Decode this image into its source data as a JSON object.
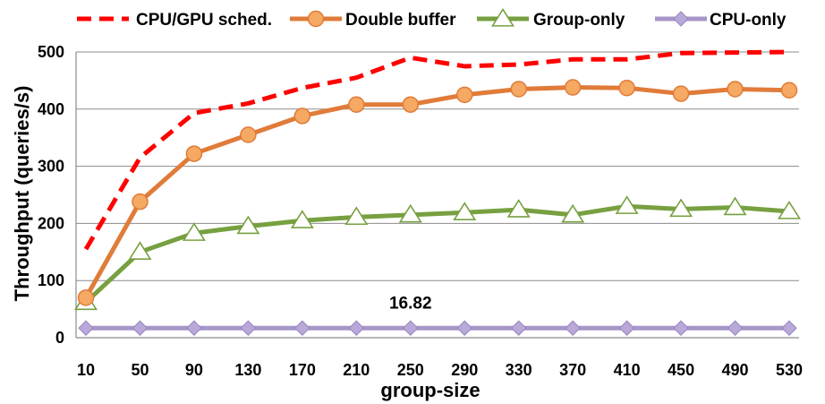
{
  "chart_data": {
    "type": "line",
    "title": "",
    "xlabel": "group-size",
    "ylabel": "Throughput (queries/s)",
    "categories": [
      "10",
      "50",
      "90",
      "130",
      "170",
      "210",
      "250",
      "290",
      "330",
      "370",
      "410",
      "450",
      "490",
      "530"
    ],
    "ylim": [
      0,
      500
    ],
    "yticks": [
      0,
      100,
      200,
      300,
      400,
      500
    ],
    "grid": true,
    "legend_position": "top",
    "series": [
      {
        "name": "CPU/GPU sched.",
        "color": "#ff0000",
        "style": "dashed",
        "marker": "none",
        "values": [
          155,
          315,
          393,
          410,
          437,
          455,
          490,
          475,
          478,
          487,
          487,
          498,
          499,
          500
        ]
      },
      {
        "name": "Double buffer",
        "color": "#e07b39",
        "style": "solid",
        "marker": "circle",
        "values": [
          70,
          238,
          322,
          355,
          388,
          408,
          408,
          425,
          435,
          438,
          437,
          427,
          435,
          433
        ]
      },
      {
        "name": "Group-only",
        "color": "#77a040",
        "style": "solid",
        "marker": "triangle",
        "values": [
          62,
          150,
          183,
          195,
          205,
          211,
          215,
          219,
          224,
          215,
          230,
          225,
          228,
          221
        ]
      },
      {
        "name": "CPU-only",
        "color": "#a796c8",
        "style": "solid",
        "marker": "diamond",
        "values": [
          16.82,
          16.82,
          16.82,
          16.82,
          16.82,
          16.82,
          16.82,
          16.82,
          16.82,
          16.82,
          16.82,
          16.82,
          16.82,
          16.82
        ]
      }
    ],
    "annotations": [
      {
        "text": "16.82",
        "series": "CPU-only",
        "category": "250"
      }
    ]
  }
}
